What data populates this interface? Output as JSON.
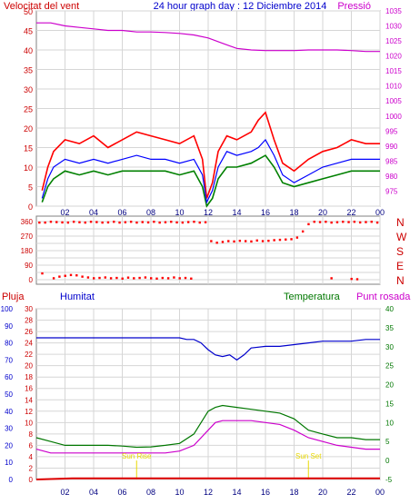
{
  "header": {
    "left": "Velocitat del vent",
    "center": "24 hour graph day : 12 Diciembre 2014",
    "right": "Pressió"
  },
  "colors": {
    "wind": "#ff0000",
    "gust": "#ff0000",
    "avg": "#0000ff",
    "low": "#008000",
    "pressure": "#cc00cc",
    "humidity": "#0000cc",
    "temperature": "#007700",
    "dew": "#cc00cc",
    "rain": "#dd0000",
    "sun": "#e8d800",
    "axis_left": "#cc0000",
    "axis_blue": "#0000cc",
    "axis_green": "#007700",
    "grid": "#d6d6d6"
  },
  "x_ticks": [
    "02",
    "04",
    "06",
    "08",
    "10",
    "12",
    "14",
    "16",
    "18",
    "20",
    "22",
    "00"
  ],
  "compass": [
    "N",
    "W",
    "S",
    "E",
    "N"
  ],
  "bottom_labels": {
    "rain": "Pluja",
    "humidity": "Humitat",
    "temperature": "Temperatura",
    "dew": "Punt rosada"
  },
  "sun_labels": {
    "rise": "Sun Rise",
    "set": "Sun Set"
  },
  "chart_data": [
    {
      "type": "line",
      "name": "wind_speed_pressure",
      "x_range": [
        0,
        24
      ],
      "ylim": [
        0,
        50
      ],
      "yticks": [
        0,
        5,
        10,
        15,
        20,
        25,
        30,
        35,
        40,
        45,
        50
      ],
      "ylim_right": [
        970,
        1035
      ],
      "yticks_right": [
        975,
        980,
        985,
        990,
        995,
        1000,
        1005,
        1010,
        1015,
        1020,
        1025,
        1030,
        1035
      ],
      "gust": {
        "x": [
          0.4,
          0.8,
          1.2,
          2,
          3,
          4,
          5,
          6,
          7,
          8,
          9,
          10,
          11,
          11.6,
          11.9,
          12.3,
          12.7,
          13.3,
          14,
          15,
          15.5,
          16,
          16.6,
          17.2,
          18,
          19,
          20,
          21,
          22,
          23,
          24
        ],
        "y": [
          4,
          10,
          14,
          17,
          16,
          18,
          15,
          17,
          19,
          18,
          17,
          16,
          18,
          12,
          2,
          6,
          14,
          18,
          17,
          19,
          22,
          24,
          17,
          11,
          9,
          12,
          14,
          15,
          17,
          16,
          16
        ]
      },
      "average": {
        "x": [
          0.4,
          0.8,
          1.2,
          2,
          3,
          4,
          5,
          6,
          7,
          8,
          9,
          10,
          11,
          11.6,
          11.9,
          12.3,
          12.7,
          13.3,
          14,
          15,
          15.5,
          16,
          16.6,
          17.2,
          18,
          19,
          20,
          21,
          22,
          23,
          24
        ],
        "y": [
          2,
          7,
          10,
          12,
          11,
          12,
          11,
          12,
          13,
          12,
          12,
          11,
          12,
          8,
          1,
          4,
          10,
          14,
          13,
          14,
          15,
          17,
          13,
          8,
          6,
          8,
          10,
          11,
          12,
          12,
          12
        ]
      },
      "low": {
        "x": [
          0.4,
          0.8,
          1.2,
          2,
          3,
          4,
          5,
          6,
          7,
          8,
          9,
          10,
          11,
          11.6,
          11.9,
          12.3,
          12.7,
          13.3,
          14,
          15,
          15.5,
          16,
          16.6,
          17.2,
          18,
          19,
          20,
          21,
          22,
          23,
          24
        ],
        "y": [
          1,
          5,
          7,
          9,
          8,
          9,
          8,
          9,
          9,
          9,
          9,
          8,
          9,
          5,
          0,
          2,
          7,
          10,
          10,
          11,
          12,
          13,
          10,
          6,
          5,
          6,
          7,
          8,
          9,
          9,
          9
        ]
      },
      "pressure": {
        "x": [
          0,
          1,
          2,
          3,
          4,
          5,
          6,
          7,
          8,
          9,
          10,
          11,
          12,
          13,
          14,
          15,
          16,
          17,
          18,
          19,
          20,
          21,
          22,
          23,
          24
        ],
        "y": [
          1031,
          1031,
          1030,
          1029.5,
          1029,
          1028.5,
          1028.5,
          1028,
          1028,
          1027.8,
          1027.5,
          1027,
          1026,
          1024.2,
          1022.5,
          1022,
          1021.8,
          1021.8,
          1021.8,
          1022,
          1022,
          1022,
          1021.8,
          1021.5,
          1021.5
        ]
      }
    },
    {
      "type": "scatter",
      "name": "wind_direction",
      "x_range": [
        0,
        24
      ],
      "ylim": [
        0,
        360
      ],
      "yticks": [
        0,
        45,
        90,
        135,
        180,
        225,
        270,
        315,
        360
      ],
      "x": [
        0.2,
        0.6,
        1.0,
        1.4,
        1.8,
        2.2,
        2.6,
        3.0,
        3.4,
        3.8,
        4.2,
        4.6,
        5.0,
        5.4,
        5.8,
        6.2,
        6.6,
        7.0,
        7.4,
        7.8,
        8.2,
        8.6,
        9.0,
        9.4,
        9.8,
        10.2,
        10.6,
        11.0,
        11.4,
        11.8,
        12.2,
        12.6,
        13.0,
        13.4,
        13.8,
        14.2,
        14.6,
        15.0,
        15.4,
        15.8,
        16.2,
        16.6,
        17.0,
        17.4,
        17.8,
        18.2,
        18.6,
        19.0,
        19.4,
        19.8,
        20.2,
        20.6,
        21.0,
        21.4,
        21.8,
        22.2,
        22.6,
        23.0,
        23.4,
        23.8
      ],
      "y": [
        355,
        355,
        360,
        358,
        356,
        355,
        360,
        357,
        355,
        360,
        358,
        355,
        356,
        360,
        355,
        357,
        360,
        355,
        358,
        356,
        360,
        355,
        357,
        360,
        356,
        355,
        358,
        360,
        355,
        357,
        240,
        230,
        235,
        240,
        238,
        242,
        240,
        238,
        244,
        240,
        242,
        246,
        248,
        250,
        252,
        262,
        300,
        345,
        360,
        358,
        360,
        355,
        357,
        360,
        358,
        360,
        356,
        358,
        360,
        355
      ]
    },
    {
      "type": "scatter",
      "name": "wind_direction_low",
      "x": [
        0.4,
        1.2,
        1.6,
        2.0,
        2.4,
        2.8,
        3.2,
        3.6,
        4.0,
        4.4,
        4.8,
        5.2,
        5.6,
        6.0,
        6.4,
        6.8,
        7.2,
        7.6,
        8.0,
        8.4,
        8.8,
        9.2,
        9.6,
        10.0,
        10.4,
        10.8,
        20.6,
        22.0,
        22.4
      ],
      "y": [
        40,
        10,
        20,
        25,
        30,
        28,
        20,
        15,
        10,
        12,
        15,
        10,
        12,
        8,
        14,
        10,
        12,
        15,
        10,
        8,
        12,
        10,
        15,
        10,
        12,
        8,
        10,
        6,
        4
      ]
    },
    {
      "type": "line",
      "name": "humidity_temperature_dew",
      "x_range": [
        0,
        24
      ],
      "ylim_rain": [
        0,
        30
      ],
      "yticks_rain": [
        0,
        2,
        4,
        6,
        8,
        10,
        12,
        14,
        16,
        18,
        20,
        22,
        24,
        26,
        28,
        30
      ],
      "ylim_humidity": [
        0,
        100
      ],
      "yticks_humidity": [
        0,
        10,
        20,
        30,
        40,
        50,
        60,
        70,
        80,
        90,
        100
      ],
      "ylim_temp": [
        -5,
        40
      ],
      "yticks_temp": [
        -5,
        0,
        5,
        10,
        15,
        20,
        25,
        30,
        35,
        40
      ],
      "humidity": {
        "x": [
          0,
          1,
          2,
          3,
          4,
          5,
          6,
          7,
          8,
          9,
          10,
          10.5,
          11,
          11.5,
          12,
          12.5,
          13,
          13.5,
          14,
          14.5,
          15,
          16,
          17,
          18,
          19,
          20,
          21,
          22,
          23,
          24
        ],
        "y": [
          83,
          83,
          83,
          83,
          83,
          83,
          83,
          83,
          83,
          83,
          83,
          82,
          82,
          80,
          76,
          73,
          72,
          73,
          70,
          73,
          77,
          78,
          78,
          79,
          80,
          81,
          81,
          81,
          82,
          82
        ]
      },
      "temperature": {
        "x": [
          0,
          1,
          2,
          3,
          4,
          5,
          6,
          7,
          8,
          9,
          10,
          11,
          12,
          12.5,
          13,
          14,
          15,
          16,
          17,
          18,
          19,
          20,
          21,
          22,
          23,
          24
        ],
        "y": [
          6,
          5,
          4,
          4,
          4,
          4,
          3.8,
          3.5,
          3.6,
          4,
          4.5,
          7,
          13,
          14,
          14.5,
          14,
          13.5,
          13,
          12.5,
          11,
          8,
          7,
          6,
          6,
          5.5,
          5.5
        ]
      },
      "dew_point": {
        "x": [
          0,
          1,
          2,
          3,
          4,
          5,
          6,
          7,
          8,
          9,
          10,
          11,
          12,
          12.5,
          13,
          14,
          15,
          16,
          17,
          18,
          19,
          20,
          21,
          22,
          23,
          24
        ],
        "y": [
          3,
          2,
          2,
          2,
          2,
          2,
          2,
          2,
          2,
          2,
          2.5,
          4,
          8,
          10,
          10.5,
          10.5,
          10.5,
          10,
          9.5,
          8,
          6,
          5,
          4,
          3.5,
          3,
          3
        ]
      },
      "rain": {
        "x": [
          0,
          2.5,
          24
        ],
        "y": [
          0,
          0.2,
          0.2
        ]
      },
      "sunrise": 7.0,
      "sunset": 19.0
    }
  ]
}
